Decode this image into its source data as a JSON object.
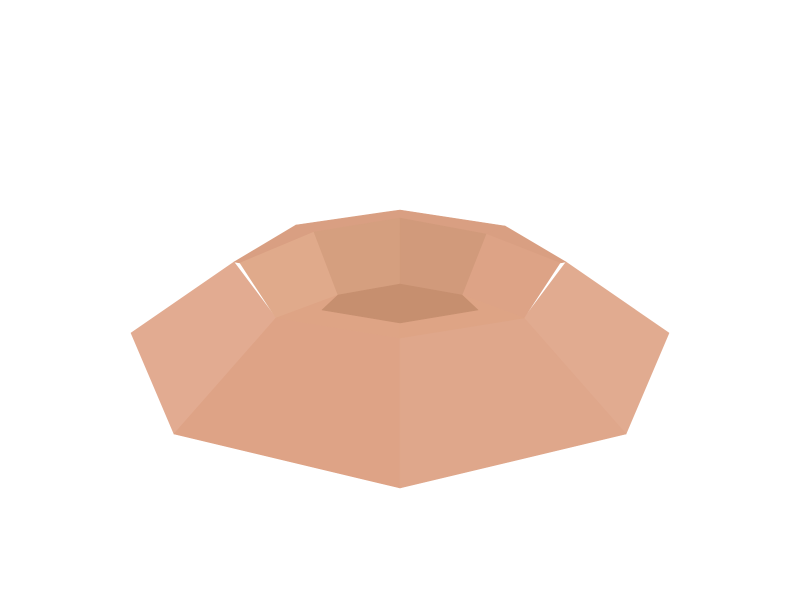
{
  "scene": {
    "background": "#ffffff",
    "object": "low-poly-hexagonal-bowl",
    "palette": {
      "outer_left": "#e2ab91",
      "outer_right": "#e1ab90",
      "front_left": "#dea386",
      "front_right": "#dfa78b",
      "top_rim": "#d99f82",
      "inner_left": "#e0aa8b",
      "inner_right": "#dda386",
      "inner_back_left": "#d59f7f",
      "inner_back_right": "#d19a7b",
      "inner_front": "#dea485",
      "floor": "#c68f6f"
    }
  }
}
